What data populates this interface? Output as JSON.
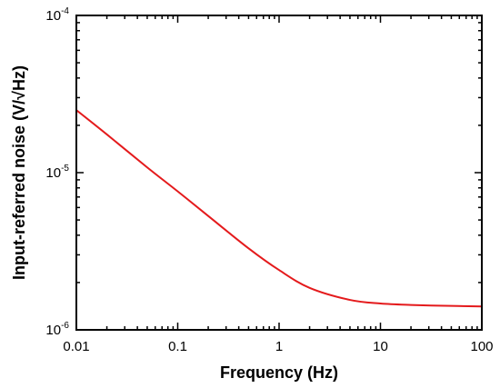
{
  "chart_data": {
    "type": "line",
    "title": "",
    "xlabel": "Frequency (Hz)",
    "ylabel": "Input-referred noise (V/√Hz)",
    "xscale": "log",
    "yscale": "log",
    "xlim": [
      0.01,
      100
    ],
    "ylim": [
      1e-06,
      0.0001
    ],
    "grid": false,
    "legend": "none",
    "xticks": [
      {
        "value": 0.01,
        "label": "0.01"
      },
      {
        "value": 0.1,
        "label": "0.1"
      },
      {
        "value": 1,
        "label": "1"
      },
      {
        "value": 10,
        "label": "10"
      },
      {
        "value": 100,
        "label": "100"
      }
    ],
    "yticks": [
      {
        "value": 1e-06,
        "base": "10",
        "exp": "-6"
      },
      {
        "value": 1e-05,
        "base": "10",
        "exp": "-5"
      },
      {
        "value": 0.0001,
        "base": "10",
        "exp": "-4"
      }
    ],
    "series": [
      {
        "color": "#e41a1c",
        "x": [
          0.01,
          0.02,
          0.05,
          0.1,
          0.2,
          0.5,
          1,
          2,
          5,
          10,
          20,
          50,
          100
        ],
        "y": [
          2.5e-05,
          1.75e-05,
          1.08e-05,
          7.6e-06,
          5.3e-06,
          3.3e-06,
          2.4e-06,
          1.85e-06,
          1.55e-06,
          1.47e-06,
          1.44e-06,
          1.42e-06,
          1.41e-06
        ]
      }
    ]
  }
}
